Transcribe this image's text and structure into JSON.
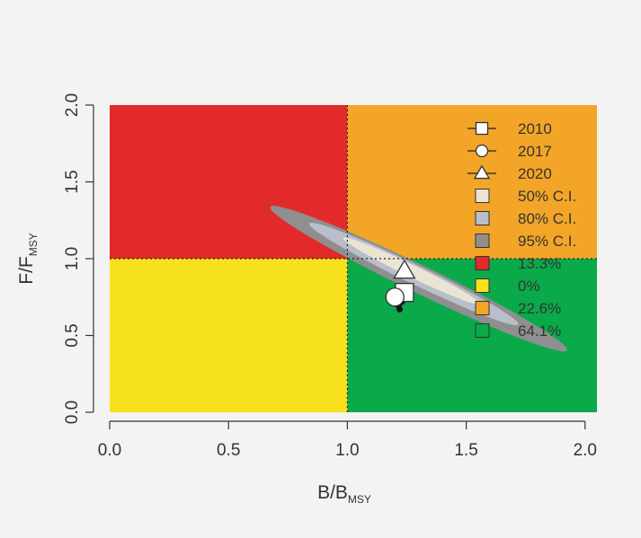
{
  "chart_data": {
    "type": "kobe",
    "xlabel": {
      "main": "B/B",
      "sub": "MSY"
    },
    "ylabel": {
      "main": "F/F",
      "sub": "MSY"
    },
    "xlim": [
      0.0,
      2.05
    ],
    "ylim": [
      0.0,
      2.0
    ],
    "x_ticks": [
      "0.0",
      "0.5",
      "1.0",
      "1.5",
      "2.0"
    ],
    "y_ticks": [
      "0.0",
      "0.5",
      "1.0",
      "1.5",
      "2.0"
    ],
    "reference_lines": {
      "x": 1.0,
      "y": 1.0
    },
    "quadrants": [
      {
        "name": "red",
        "x": [
          0,
          1
        ],
        "y": [
          1,
          2
        ],
        "color": "#e22a2a",
        "percent": "13.3%"
      },
      {
        "name": "yellow",
        "x": [
          0,
          1
        ],
        "y": [
          0,
          1
        ],
        "color": "#f7e11c",
        "percent": "0%"
      },
      {
        "name": "orange",
        "x": [
          1,
          2.05
        ],
        "y": [
          1,
          2
        ],
        "color": "#f2a527",
        "percent": "22.6%"
      },
      {
        "name": "green",
        "x": [
          1,
          2.05
        ],
        "y": [
          0,
          1
        ],
        "color": "#0aaa4a",
        "percent": "64.1%"
      }
    ],
    "confidence_regions": [
      {
        "label": "95% C.I.",
        "color": "#8f8f8f",
        "center": [
          1.3,
          0.87
        ],
        "half_major": 0.78,
        "half_minor": 0.08,
        "angle_deg": -37
      },
      {
        "label": "80% C.I.",
        "color": "#b8bfcb",
        "center": [
          1.28,
          0.9
        ],
        "half_major": 0.55,
        "half_minor": 0.055,
        "angle_deg": -37
      },
      {
        "label": "50% C.I.",
        "color": "#ece4d2",
        "center": [
          1.27,
          0.92
        ],
        "half_major": 0.36,
        "half_minor": 0.035,
        "angle_deg": -37
      }
    ],
    "trajectory": {
      "color": "#111111",
      "x": [
        1.21,
        1.22,
        1.23,
        1.24,
        1.24
      ],
      "y": [
        0.7,
        0.67,
        0.72,
        0.78,
        0.82
      ]
    },
    "points": [
      {
        "year": "2010",
        "marker": "square",
        "x": 1.24,
        "y": 0.78
      },
      {
        "year": "2017",
        "marker": "circle",
        "x": 1.2,
        "y": 0.75
      },
      {
        "year": "2020",
        "marker": "triangle",
        "x": 1.24,
        "y": 0.92
      }
    ],
    "legend": {
      "placement": "top-right",
      "items": [
        {
          "label": "2010",
          "kind": "line-square"
        },
        {
          "label": "2017",
          "kind": "line-circle"
        },
        {
          "label": "2020",
          "kind": "line-triangle"
        },
        {
          "label": "50% C.I.",
          "kind": "box",
          "color": "#ece4d2"
        },
        {
          "label": "80% C.I.",
          "kind": "box",
          "color": "#b8bfcb"
        },
        {
          "label": "95% C.I.",
          "kind": "box",
          "color": "#8f8f8f"
        },
        {
          "label": "13.3%",
          "kind": "box",
          "color": "#e22a2a"
        },
        {
          "label": "0%",
          "kind": "box",
          "color": "#f7e11c"
        },
        {
          "label": "22.6%",
          "kind": "box",
          "color": "#f2a527"
        },
        {
          "label": "64.1%",
          "kind": "box",
          "color": "#0aaa4a"
        }
      ]
    }
  }
}
